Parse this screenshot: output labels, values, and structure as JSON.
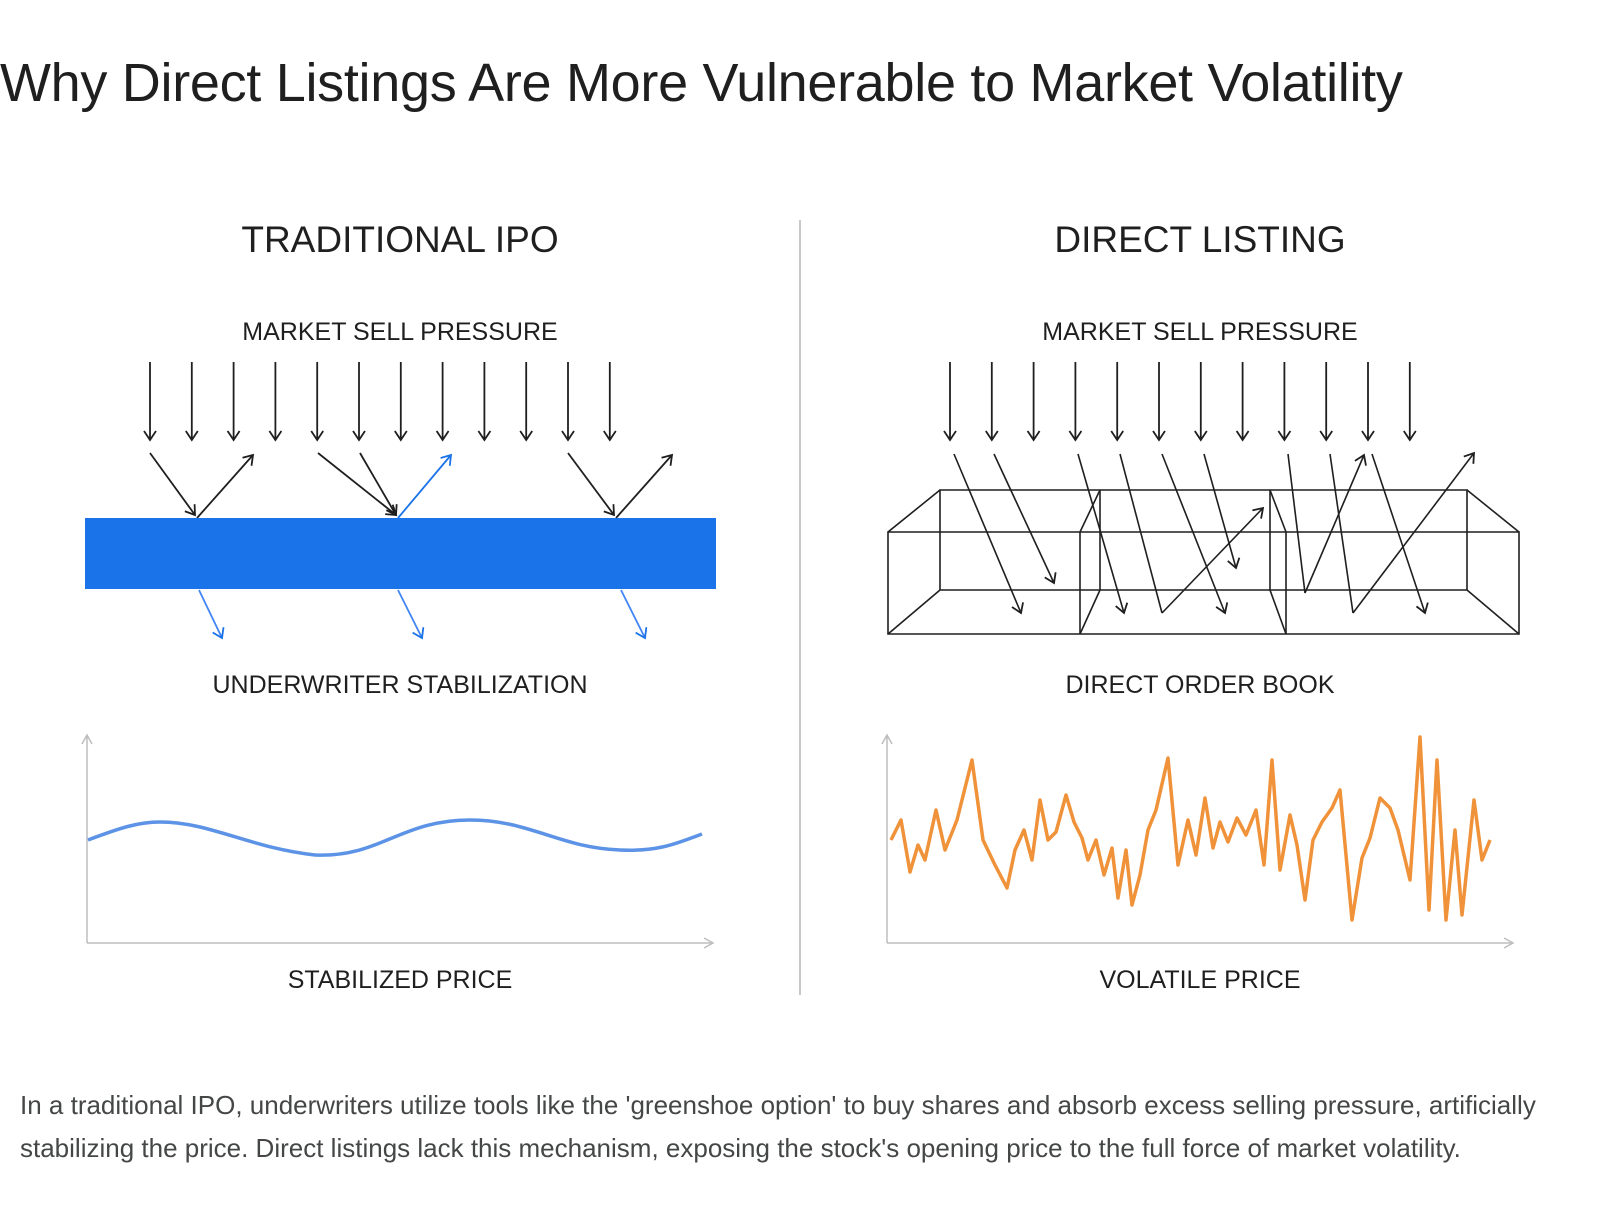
{
  "title": "Why Direct Listings Are More Vulnerable to Market Volatility",
  "left": {
    "heading": "TRADITIONAL IPO",
    "pressure_label": "MARKET SELL PRESSURE",
    "barrier_label": "UNDERWRITER STABILIZATION",
    "price_label": "STABILIZED PRICE"
  },
  "right": {
    "heading": "DIRECT LISTING",
    "pressure_label": "MARKET SELL PRESSURE",
    "barrier_label": "DIRECT ORDER BOOK",
    "price_label": "VOLATILE PRICE"
  },
  "caption": "In a traditional IPO, underwriters utilize tools like the 'greenshoe option' to buy shares and absorb excess selling pressure, artificially stabilizing the price. Direct listings lack this mechanism, exposing the stock's opening price to the full force of market volatility.",
  "colors": {
    "barrier_blue": "#1a73e8",
    "deflect_blue": "#4285f4",
    "stable_line": "#5c93e6",
    "volatile_line": "#f0923a",
    "ink": "#1f1f1f",
    "axis": "#bdbdbd",
    "caption_text": "#444746"
  }
}
